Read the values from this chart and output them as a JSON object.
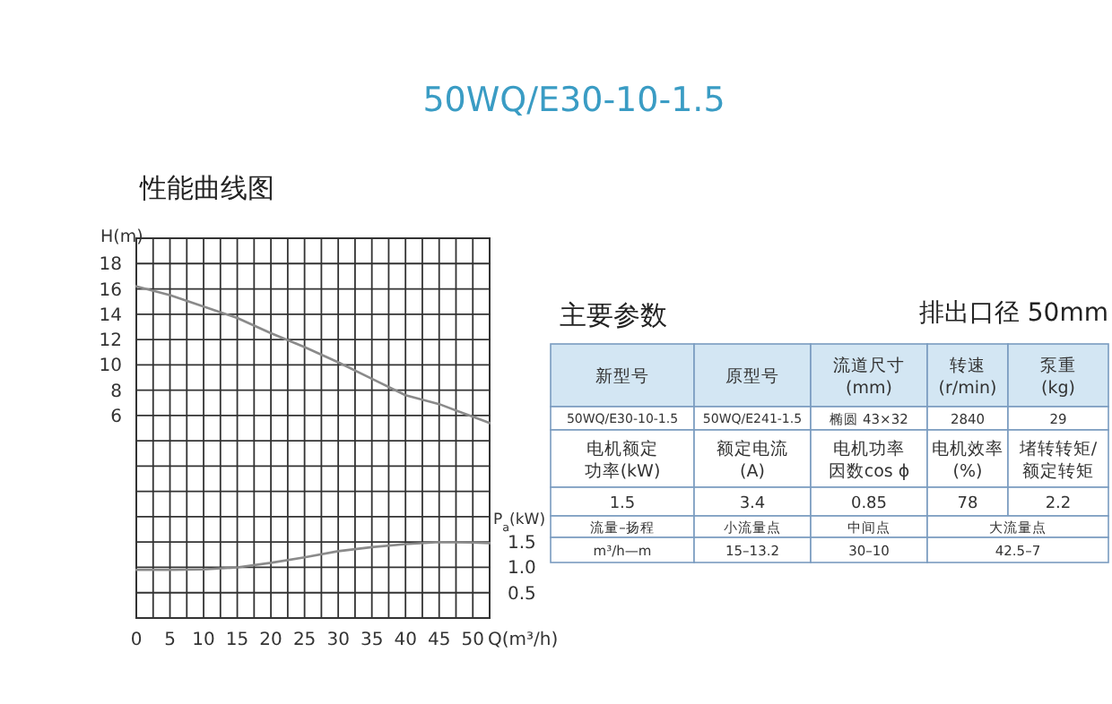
{
  "chart_data": [
    {
      "type": "line",
      "title": "性能曲线图",
      "annotations": [
        "50WQ/E30-10-1.5"
      ],
      "ylabel": "H(m)",
      "y2label": "P$_{a}$(kW)",
      "xlabel": "Q(m³/h)",
      "x": [
        0,
        5,
        10,
        15,
        20,
        25,
        30,
        35,
        40,
        45,
        50,
        52.5
      ],
      "series": [
        {
          "color": "#8a8a8a",
          "values": [
            16.2,
            15.5,
            14.6,
            13.7,
            12.5,
            11.4,
            10.2,
            8.9,
            7.6,
            6.9,
            5.9,
            5.4
          ]
        },
        {
          "color": "#8a8a8a",
          "axis": "y2",
          "values": [
            0.95,
            0.95,
            0.96,
            1.0,
            1.09,
            1.2,
            1.32,
            1.4,
            1.46,
            1.5,
            1.49,
            1.48
          ]
        }
      ],
      "xlim": [
        0,
        52.5
      ],
      "xticks": [
        0,
        {
          "value": 2.5,
          "label": null
        },
        5,
        {
          "value": 7.5,
          "label": null
        },
        10,
        {
          "value": 12.5,
          "label": null
        },
        15,
        {
          "value": 17.5,
          "label": null
        },
        20,
        {
          "value": 22.5,
          "label": null
        },
        25,
        {
          "value": 27.5,
          "label": null
        },
        30,
        {
          "value": 32.5,
          "label": null
        },
        35,
        {
          "value": 37.5,
          "label": null
        },
        40,
        {
          "value": 42.5,
          "label": null
        },
        45,
        {
          "value": 47.5,
          "label": null
        },
        50,
        {
          "value": 52.5,
          "label": null
        }
      ],
      "ylim": [
        -10,
        20
      ],
      "yticks": [
        {
          "value": -10,
          "label": null
        },
        {
          "value": -8,
          "label": null
        },
        {
          "value": -6,
          "label": null
        },
        {
          "value": -4,
          "label": null
        },
        {
          "value": -2,
          "label": null
        },
        {
          "value": 0,
          "label": null
        },
        {
          "value": 2,
          "label": null
        },
        {
          "value": 4,
          "label": null
        },
        6,
        8,
        10,
        12,
        14,
        16,
        18,
        {
          "value": 20,
          "label": null
        }
      ],
      "y2lim": [
        0,
        7.5
      ],
      "y2ticks": [
        0.5,
        {
          "value": 1.0,
          "label": "1.0"
        },
        1.5
      ],
      "grid": true,
      "line_style": "solid"
    },
    {
      "type": "other",
      "title": "主要参数",
      "subtitle": "排出口径  50mm",
      "annotations": [
        "新型号",
        "原型号",
        "流道尺寸\n(mm)",
        "转速\n(r/min)",
        "泵重\n(kg)",
        "50WQ/E30-10-1.5",
        "50WQ/E241-1.5",
        "椭圆  43×32",
        "2840",
        "29",
        "电机额定功率(kW)",
        "额定电流\n(A)",
        "电机功率因数cos ϕ",
        "电机效率\n(%)",
        "堵转转矩/额定转矩",
        "1.5",
        "3.4",
        "0.85",
        "78",
        "2.2",
        "流量–扬程",
        "小流量点",
        "中间点",
        "大流量点",
        "m³/h—m",
        "15–13.2",
        "30–10",
        "42.5–7"
      ]
    }
  ]
}
